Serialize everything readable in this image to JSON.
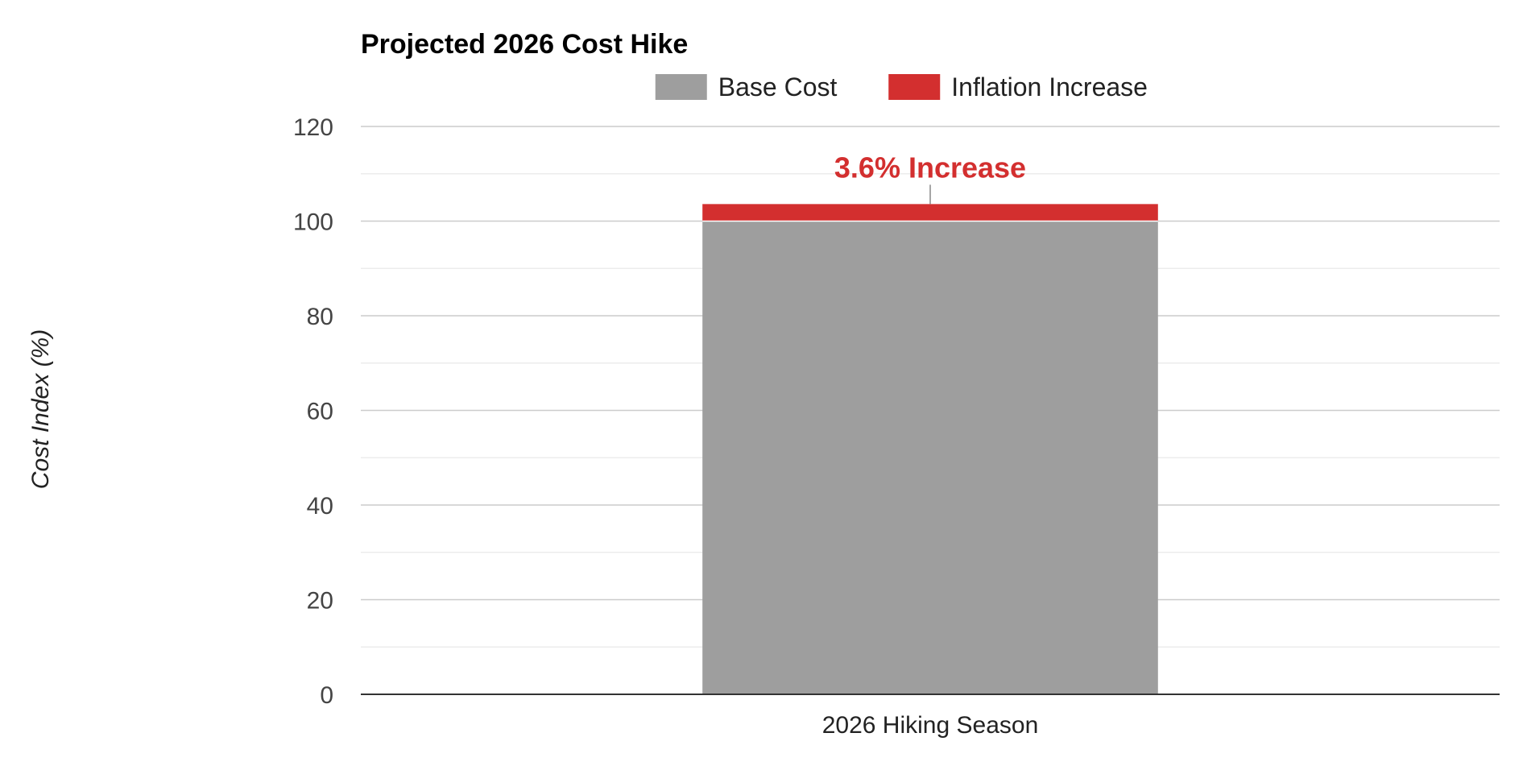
{
  "chart_data": {
    "type": "bar",
    "stacked": true,
    "title": "Projected 2026 Cost Hike",
    "xlabel": "",
    "ylabel": "Cost Index (%)",
    "categories": [
      "2026 Hiking Season"
    ],
    "series": [
      {
        "name": "Base Cost",
        "values": [
          100
        ],
        "color": "#9e9e9e"
      },
      {
        "name": "Inflation Increase",
        "values": [
          3.6
        ],
        "color": "#d32f2f"
      }
    ],
    "ylim": [
      0,
      120
    ],
    "yticks": [
      0,
      20,
      40,
      60,
      80,
      100,
      120
    ],
    "grid": true,
    "legend": "top-center",
    "annotations": [
      {
        "text": "3.6% Increase",
        "category": "2026 Hiking Season",
        "color": "#d32f2f"
      }
    ]
  }
}
